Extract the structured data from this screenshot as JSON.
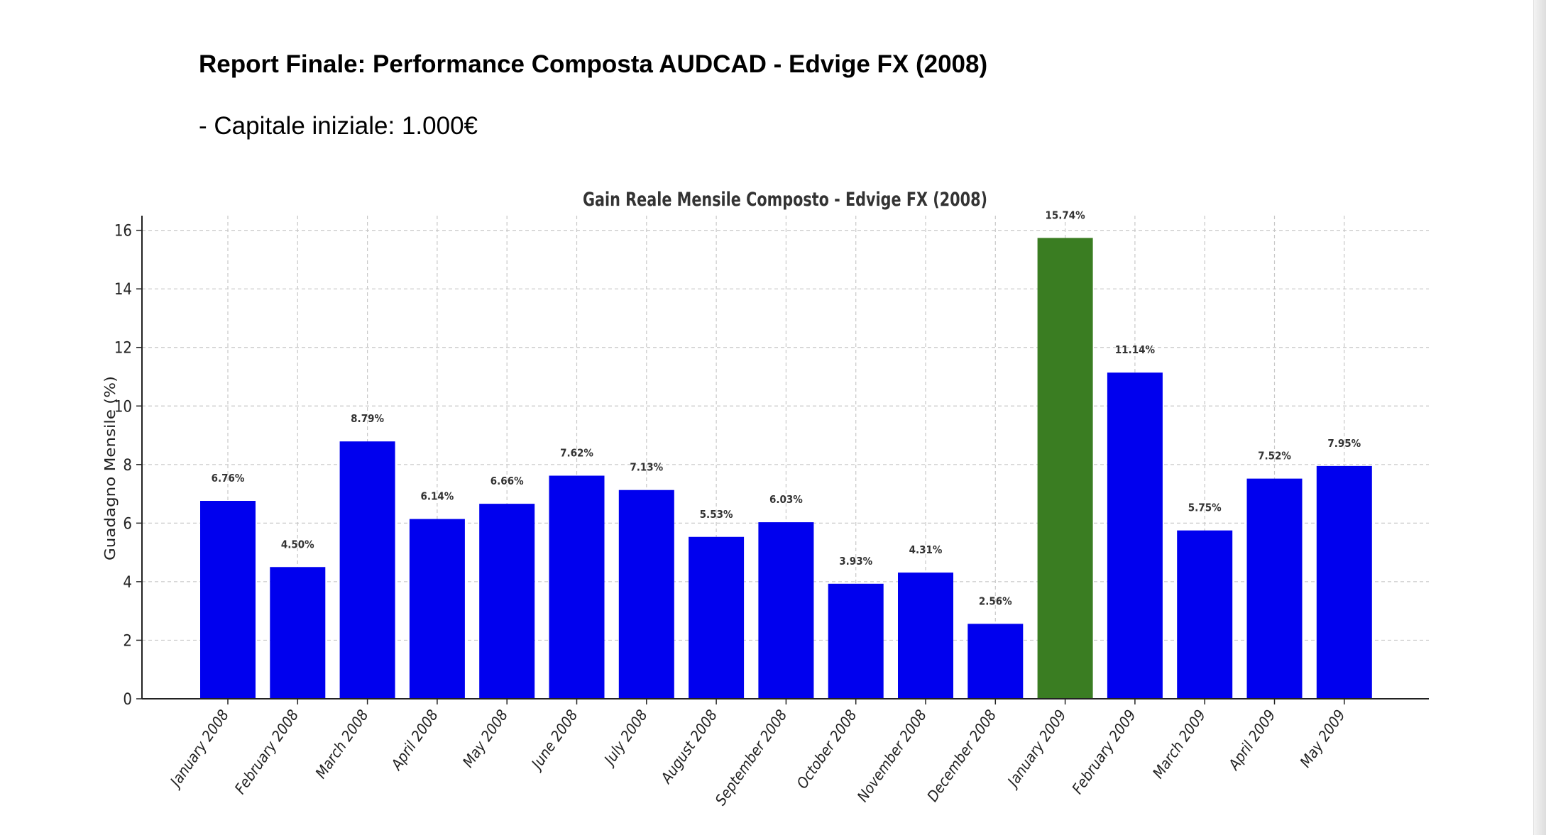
{
  "report": {
    "title": "Report Finale: Performance Composta AUDCAD - Edvige FX (2008)",
    "line1": "- Capitale iniziale: 1.000€"
  },
  "chart_data": {
    "type": "bar",
    "title": "Gain Reale Mensile Composto - Edvige FX (2008)",
    "xlabel": "",
    "ylabel": "Guadagno Mensile (%)",
    "ylim": [
      0,
      16.5
    ],
    "yticks": [
      0,
      2,
      4,
      6,
      8,
      10,
      12,
      14,
      16
    ],
    "grid": true,
    "categories": [
      "January 2008",
      "February 2008",
      "March 2008",
      "April 2008",
      "May 2008",
      "June 2008",
      "July 2008",
      "August 2008",
      "September 2008",
      "October 2008",
      "November 2008",
      "December 2008",
      "January 2009",
      "February 2009",
      "March 2009",
      "April 2009",
      "May 2009"
    ],
    "values": [
      6.76,
      4.5,
      8.79,
      6.14,
      6.66,
      7.62,
      7.13,
      5.53,
      6.03,
      3.93,
      4.31,
      2.56,
      15.74,
      11.14,
      5.75,
      7.52,
      7.95
    ],
    "labels": [
      "6.76%",
      "4.50%",
      "8.79%",
      "6.14%",
      "6.66%",
      "7.62%",
      "7.13%",
      "5.53%",
      "6.03%",
      "3.93%",
      "4.31%",
      "2.56%",
      "15.74%",
      "11.14%",
      "5.75%",
      "7.52%",
      "7.95%"
    ],
    "colors": [
      "#0000ee",
      "#0000ee",
      "#0000ee",
      "#0000ee",
      "#0000ee",
      "#0000ee",
      "#0000ee",
      "#0000ee",
      "#0000ee",
      "#0000ee",
      "#0000ee",
      "#0000ee",
      "#3a7d22",
      "#0000ee",
      "#0000ee",
      "#0000ee",
      "#0000ee"
    ],
    "bar_color": "#0000ee",
    "highlight_color": "#3a7d22"
  }
}
